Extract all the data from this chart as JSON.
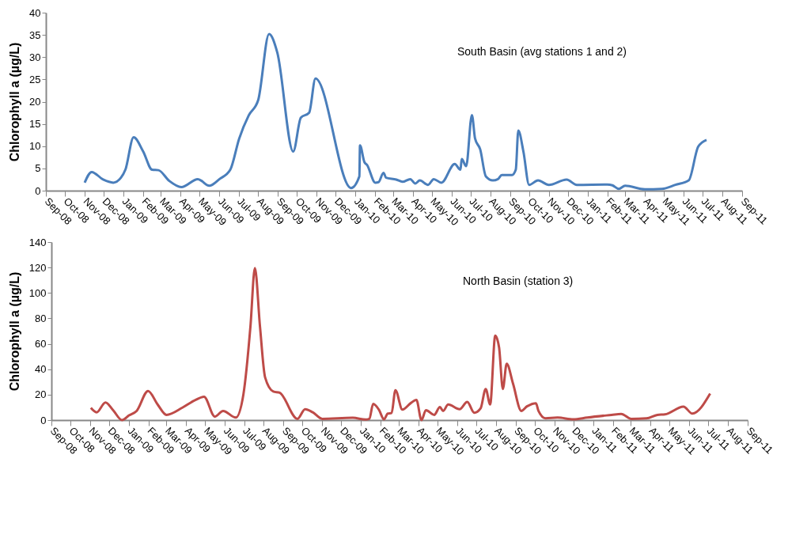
{
  "chart_data": [
    {
      "type": "line",
      "ylabel": "Chlorophyll a (µg/L)",
      "annotations": [
        "South Basin (avg stations 1 and 2)"
      ],
      "x": [
        "2008-11-01",
        "2008-11-12",
        "2008-11-30",
        "2008-12-16",
        "2008-12-28",
        "2009-01-04",
        "2009-01-17",
        "2009-02-01",
        "2009-02-15",
        "2009-02-25",
        "2009-03-14",
        "2009-04-02",
        "2009-04-28",
        "2009-05-16",
        "2009-06-01",
        "2009-06-18",
        "2009-07-02",
        "2009-07-17",
        "2009-08-01",
        "2009-08-18",
        "2009-08-31",
        "2009-09-25",
        "2009-10-07",
        "2009-10-20",
        "2009-10-30",
        "2009-12-25",
        "2010-01-07",
        "2010-01-08",
        "2010-01-15",
        "2010-01-19",
        "2010-02-01",
        "2010-02-06",
        "2010-02-14",
        "2010-02-18",
        "2010-03-06",
        "2010-03-16",
        "2010-03-28",
        "2010-04-05",
        "2010-04-12",
        "2010-04-25",
        "2010-05-04",
        "2010-05-16",
        "2010-06-06",
        "2010-06-15",
        "2010-06-17",
        "2010-06-24",
        "2010-07-03",
        "2010-07-08",
        "2010-07-16",
        "2010-07-25",
        "2010-08-05",
        "2010-08-13",
        "2010-08-19",
        "2010-09-04",
        "2010-09-10",
        "2010-09-14",
        "2010-09-22",
        "2010-10-01",
        "2010-10-15",
        "2010-11-01",
        "2010-11-29",
        "2010-12-15",
        "2011-02-01",
        "2011-02-09",
        "2011-02-19",
        "2011-03-01",
        "2011-04-01",
        "2011-04-28",
        "2011-05-19",
        "2011-06-09",
        "2011-06-24",
        "2011-07-07"
      ],
      "series": [
        {
          "color": "#4a7ebb",
          "values": [
            1.8,
            4.2,
            2.5,
            1.8,
            2.9,
            4.7,
            12,
            8.8,
            4.7,
            4.6,
            2.2,
            0.8,
            2.6,
            1.1,
            2.6,
            4.7,
            11.7,
            16.9,
            20.4,
            35.2,
            31,
            8.8,
            16.4,
            17.5,
            25.2,
            0.6,
            3.2,
            10.2,
            6.4,
            5.8,
            1.8,
            1.9,
            4,
            2.9,
            2.5,
            2,
            2.6,
            1.6,
            2.3,
            1.3,
            2.6,
            1.8,
            6,
            4.7,
            7.1,
            5.5,
            17,
            11.7,
            9.3,
            3.2,
            2.3,
            2.6,
            3.5,
            3.5,
            4.7,
            13.5,
            8.8,
            1.3,
            2.3,
            1.3,
            2.5,
            1.3,
            1.4,
            1.2,
            0.4,
            1.1,
            0.3,
            0.4,
            1.3,
            2.3,
            9.9,
            11.4
          ]
        }
      ],
      "ylim": [
        0,
        40
      ],
      "yticks": [
        0,
        5,
        10,
        15,
        20,
        25,
        30,
        35,
        40
      ],
      "xlim": [
        "2008-09",
        "2011-09"
      ],
      "xticks": [
        {
          "value": "2008-09",
          "label": "Sep-08"
        },
        {
          "value": "2008-10",
          "label": "Oct-08"
        },
        {
          "value": "2008-11",
          "label": "Nov-08"
        },
        {
          "value": "2008-12",
          "label": "Dec-08"
        },
        {
          "value": "2009-01",
          "label": "Jan-09"
        },
        {
          "value": "2009-02",
          "label": "Feb-09"
        },
        {
          "value": "2009-03",
          "label": "Mar-09"
        },
        {
          "value": "2009-04",
          "label": "Apr-09"
        },
        {
          "value": "2009-05",
          "label": "May-09"
        },
        {
          "value": "2009-06",
          "label": "Jun-09"
        },
        {
          "value": "2009-07",
          "label": "Jul-09"
        },
        {
          "value": "2009-08",
          "label": "Aug-09"
        },
        {
          "value": "2009-09",
          "label": "Sep-09"
        },
        {
          "value": "2009-10",
          "label": "Oct-09"
        },
        {
          "value": "2009-11",
          "label": "Nov-09"
        },
        {
          "value": "2009-12",
          "label": "Dec-09"
        },
        {
          "value": "2010-01",
          "label": "Jan-10"
        },
        {
          "value": "2010-02",
          "label": "Feb-10"
        },
        {
          "value": "2010-03",
          "label": "Mar-10"
        },
        {
          "value": "2010-04",
          "label": "Apr-10"
        },
        {
          "value": "2010-05",
          "label": "May-10"
        },
        {
          "value": "2010-06",
          "label": "Jun-10"
        },
        {
          "value": "2010-07",
          "label": "Jul-10"
        },
        {
          "value": "2010-08",
          "label": "Aug-10"
        },
        {
          "value": "2010-09",
          "label": "Sep-10"
        },
        {
          "value": "2010-10",
          "label": "Oct-10"
        },
        {
          "value": "2010-11",
          "label": "Nov-10"
        },
        {
          "value": "2010-12",
          "label": "Dec-10"
        },
        {
          "value": "2011-01",
          "label": "Jan-11"
        },
        {
          "value": "2011-02",
          "label": "Feb-11"
        },
        {
          "value": "2011-03",
          "label": "Mar-11"
        },
        {
          "value": "2011-04",
          "label": "Apr-11"
        },
        {
          "value": "2011-05",
          "label": "May-11"
        },
        {
          "value": "2011-06",
          "label": "Jun-11"
        },
        {
          "value": "2011-07",
          "label": "Jul-11"
        },
        {
          "value": "2011-08",
          "label": "Aug-11"
        },
        {
          "value": "2011-09",
          "label": "Sep-11"
        }
      ]
    },
    {
      "type": "line",
      "ylabel": "Chlorophyll a (µg/L)",
      "annotations": [
        "North Basin (station 3)"
      ],
      "x": [
        "2008-11-02",
        "2008-11-11",
        "2008-11-25",
        "2008-12-07",
        "2008-12-21",
        "2009-01-01",
        "2009-01-13",
        "2009-01-31",
        "2009-02-15",
        "2009-03-01",
        "2009-03-26",
        "2009-04-16",
        "2009-04-29",
        "2009-05-16",
        "2009-05-29",
        "2009-06-18",
        "2009-06-30",
        "2009-07-11",
        "2009-07-18",
        "2009-07-26",
        "2009-08-03",
        "2009-08-16",
        "2009-08-26",
        "2009-09-23",
        "2009-10-05",
        "2009-10-17",
        "2009-11-01",
        "2009-12-19",
        "2010-01-08",
        "2010-01-14",
        "2010-01-20",
        "2010-01-29",
        "2010-02-06",
        "2010-02-12",
        "2010-02-18",
        "2010-02-24",
        "2010-03-07",
        "2010-03-20",
        "2010-03-29",
        "2010-04-06",
        "2010-04-13",
        "2010-04-26",
        "2010-05-05",
        "2010-05-10",
        "2010-05-18",
        "2010-06-05",
        "2010-06-17",
        "2010-06-28",
        "2010-07-08",
        "2010-07-16",
        "2010-07-23",
        "2010-07-31",
        "2010-08-06",
        "2010-08-12",
        "2010-08-18",
        "2010-08-28",
        "2010-09-10",
        "2010-09-19",
        "2010-10-03",
        "2010-10-07",
        "2010-10-18",
        "2010-11-06",
        "2010-12-01",
        "2010-12-23",
        "2011-01-30",
        "2011-02-14",
        "2011-03-02",
        "2011-03-26",
        "2011-04-12",
        "2011-04-24",
        "2011-05-23",
        "2011-06-06",
        "2011-07-04"
      ],
      "series": [
        {
          "color": "#be4b48",
          "values": [
            9.6,
            6.1,
            13.9,
            7.8,
            0,
            3.7,
            7.2,
            22.9,
            12.3,
            4.1,
            9.8,
            15.9,
            18.4,
            2.7,
            7.2,
            2,
            20.4,
            73.6,
            119.6,
            73.6,
            33.7,
            22.5,
            21.5,
            1,
            8.6,
            6.1,
            1,
            1.8,
            0.4,
            1,
            12.7,
            8.2,
            0.6,
            5.1,
            5.5,
            23.5,
            8.2,
            13.3,
            15.9,
            0,
            7.8,
            4.1,
            10.2,
            7.2,
            12.3,
            8.6,
            14.3,
            5.7,
            9.2,
            24.5,
            12.3,
            66.4,
            57.2,
            24.5,
            44.3,
            28.6,
            7.2,
            10.8,
            13.3,
            7.2,
            1.4,
            2,
            0.6,
            2,
            4.1,
            4.9,
            1,
            1.4,
            4.1,
            4.5,
            10.6,
            5.1,
            20.8
          ]
        }
      ],
      "ylim": [
        0,
        140
      ],
      "yticks": [
        0,
        20,
        40,
        60,
        80,
        100,
        120,
        140
      ],
      "xlim": [
        "2008-09",
        "2011-09"
      ],
      "xticks": [
        {
          "value": "2008-09",
          "label": "Sep-08"
        },
        {
          "value": "2008-10",
          "label": "Oct-08"
        },
        {
          "value": "2008-11",
          "label": "Nov-08"
        },
        {
          "value": "2008-12",
          "label": "Dec-08"
        },
        {
          "value": "2009-01",
          "label": "Jan-09"
        },
        {
          "value": "2009-02",
          "label": "Feb-09"
        },
        {
          "value": "2009-03",
          "label": "Mar-09"
        },
        {
          "value": "2009-04",
          "label": "Apr-09"
        },
        {
          "value": "2009-05",
          "label": "May-09"
        },
        {
          "value": "2009-06",
          "label": "Jun-09"
        },
        {
          "value": "2009-07",
          "label": "Jul-09"
        },
        {
          "value": "2009-08",
          "label": "Aug-09"
        },
        {
          "value": "2009-09",
          "label": "Sep-09"
        },
        {
          "value": "2009-10",
          "label": "Oct-09"
        },
        {
          "value": "2009-11",
          "label": "Nov-09"
        },
        {
          "value": "2009-12",
          "label": "Dec-09"
        },
        {
          "value": "2010-01",
          "label": "Jan-10"
        },
        {
          "value": "2010-02",
          "label": "Feb-10"
        },
        {
          "value": "2010-03",
          "label": "Mar-10"
        },
        {
          "value": "2010-04",
          "label": "Apr-10"
        },
        {
          "value": "2010-05",
          "label": "May-10"
        },
        {
          "value": "2010-06",
          "label": "Jun-10"
        },
        {
          "value": "2010-07",
          "label": "Jul-10"
        },
        {
          "value": "2010-08",
          "label": "Aug-10"
        },
        {
          "value": "2010-09",
          "label": "Sep-10"
        },
        {
          "value": "2010-10",
          "label": "Oct-10"
        },
        {
          "value": "2010-11",
          "label": "Nov-10"
        },
        {
          "value": "2010-12",
          "label": "Dec-10"
        },
        {
          "value": "2011-01",
          "label": "Jan-11"
        },
        {
          "value": "2011-02",
          "label": "Feb-11"
        },
        {
          "value": "2011-03",
          "label": "Mar-11"
        },
        {
          "value": "2011-04",
          "label": "Apr-11"
        },
        {
          "value": "2011-05",
          "label": "May-11"
        },
        {
          "value": "2011-06",
          "label": "Jun-11"
        },
        {
          "value": "2011-07",
          "label": "Jul-11"
        },
        {
          "value": "2011-08",
          "label": "Aug-11"
        },
        {
          "value": "2011-09",
          "label": "Sep-11"
        }
      ]
    }
  ]
}
